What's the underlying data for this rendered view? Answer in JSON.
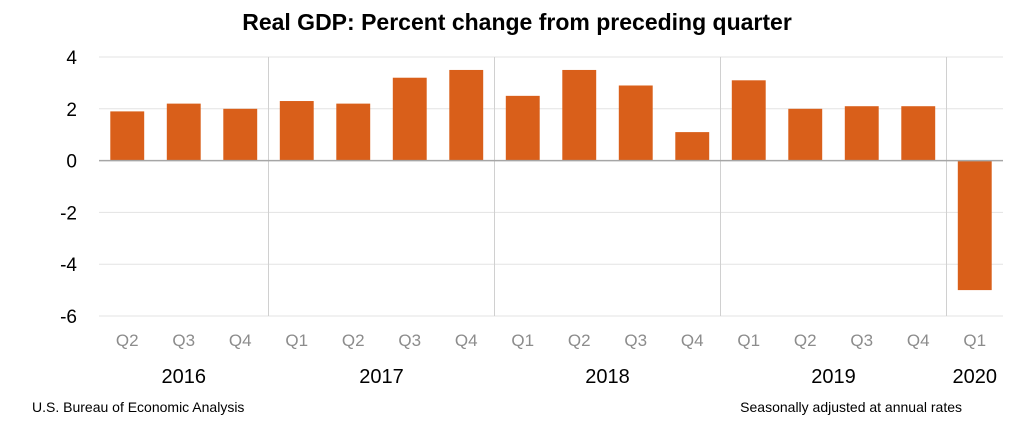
{
  "chart_data": {
    "type": "bar",
    "title": "Real GDP:  Percent change from preceding quarter",
    "categories": [
      "Q2",
      "Q3",
      "Q4",
      "Q1",
      "Q2",
      "Q3",
      "Q4",
      "Q1",
      "Q2",
      "Q3",
      "Q4",
      "Q1",
      "Q2",
      "Q3",
      "Q4",
      "Q1"
    ],
    "years": [
      {
        "label": "2016",
        "count": 3
      },
      {
        "label": "2017",
        "count": 4
      },
      {
        "label": "2018",
        "count": 4
      },
      {
        "label": "2019",
        "count": 4
      },
      {
        "label": "2020",
        "count": 1
      }
    ],
    "values": [
      1.9,
      2.2,
      2.0,
      2.3,
      2.2,
      3.2,
      3.5,
      2.5,
      3.5,
      2.9,
      1.1,
      3.1,
      2.0,
      2.1,
      2.1,
      -5.0
    ],
    "ylim": [
      -6,
      4
    ],
    "yticks": [
      4,
      2,
      0,
      -2,
      -4,
      -6
    ],
    "grid": true,
    "bar_color": "#d95f1a",
    "xlabel": "",
    "ylabel": ""
  },
  "footer": {
    "source": "U.S. Bureau of Economic Analysis",
    "note": "Seasonally adjusted at annual rates"
  }
}
